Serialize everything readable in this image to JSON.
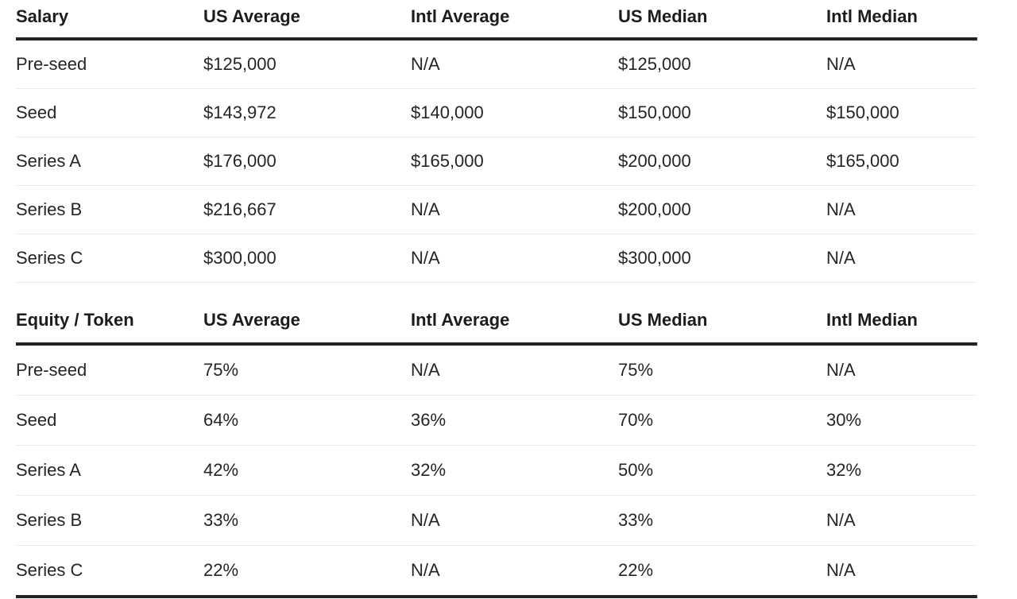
{
  "page": {
    "background_color": "#ffffff",
    "text_color": "#212121",
    "header_rule_color": "#232323",
    "row_separator_color": "#ebebeb"
  },
  "chart_data": [
    {
      "type": "table",
      "title": "Salary",
      "columns": [
        "Salary",
        "US Average",
        "Intl Average",
        "US Median",
        "Intl Median"
      ],
      "rows": [
        [
          "Pre-seed",
          "$125,000",
          "N/A",
          "$125,000",
          "N/A"
        ],
        [
          "Seed",
          "$143,972",
          "$140,000",
          "$150,000",
          "$150,000"
        ],
        [
          "Series A",
          "$176,000",
          "$165,000",
          "$200,000",
          "$165,000"
        ],
        [
          "Series B",
          "$216,667",
          "N/A",
          "$200,000",
          "N/A"
        ],
        [
          "Series C",
          "$300,000",
          "N/A",
          "$300,000",
          "N/A"
        ]
      ]
    },
    {
      "type": "table",
      "title": "Equity / Token",
      "columns": [
        "Equity / Token",
        "US Average",
        "Intl Average",
        "US Median",
        "Intl Median"
      ],
      "rows": [
        [
          "Pre-seed",
          "75%",
          "N/A",
          "75%",
          "N/A"
        ],
        [
          "Seed",
          "64%",
          "36%",
          "70%",
          "30%"
        ],
        [
          "Series A",
          "42%",
          "32%",
          "50%",
          "32%"
        ],
        [
          "Series B",
          "33%",
          "N/A",
          "33%",
          "N/A"
        ],
        [
          "Series C",
          "22%",
          "N/A",
          "22%",
          "N/A"
        ]
      ]
    }
  ]
}
